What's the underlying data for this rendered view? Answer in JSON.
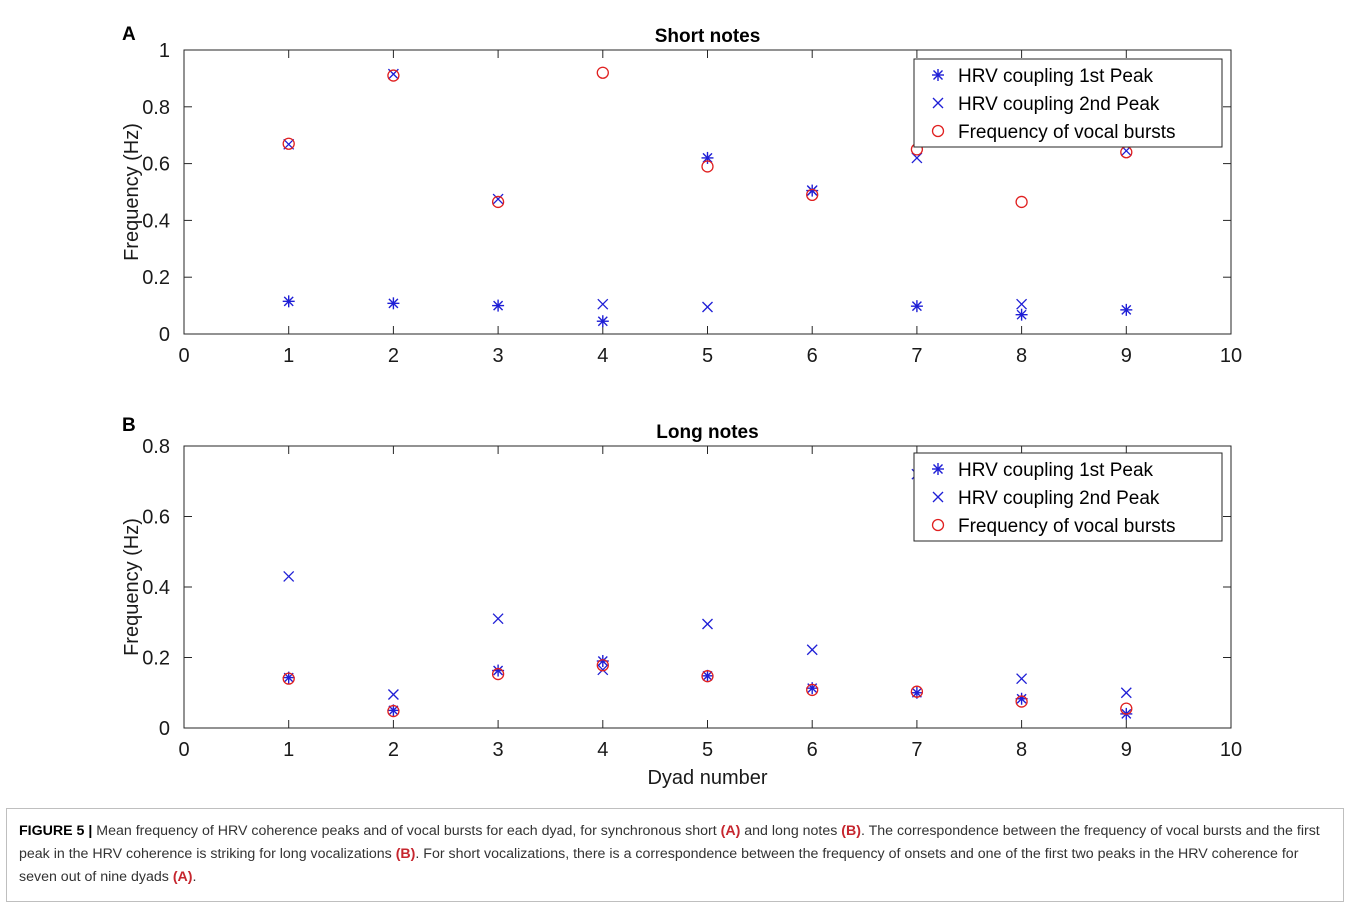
{
  "chart_data": [
    {
      "panel_label": "A",
      "type": "scatter",
      "title": "Short notes",
      "xlabel": "",
      "ylabel": "Frequency (Hz)",
      "xlim": [
        0,
        10
      ],
      "ylim": [
        0,
        1
      ],
      "xticks": [
        "0",
        "1",
        "2",
        "3",
        "4",
        "5",
        "6",
        "7",
        "8",
        "9",
        "10"
      ],
      "yticks": [
        "0",
        "0.2",
        "0.4",
        "0.6",
        "0.8",
        "1"
      ],
      "legend_position": "top-right",
      "series": [
        {
          "name": "HRV coupling 1st Peak",
          "marker": "asterisk",
          "color": "#1f1fd6",
          "points": [
            [
              1,
              0.115
            ],
            [
              2,
              0.108
            ],
            [
              3,
              0.1
            ],
            [
              4,
              0.045
            ],
            [
              5,
              0.62
            ],
            [
              6,
              0.505
            ],
            [
              7,
              0.098
            ],
            [
              8,
              0.068
            ],
            [
              9,
              0.085
            ]
          ]
        },
        {
          "name": "HRV coupling 2nd Peak",
          "marker": "x",
          "color": "#1f1fd6",
          "points": [
            [
              1,
              0.668
            ],
            [
              2,
              0.915
            ],
            [
              3,
              0.475
            ],
            [
              4,
              0.105
            ],
            [
              5,
              0.095
            ],
            [
              6,
              0.505
            ],
            [
              7,
              0.62
            ],
            [
              8,
              0.105
            ],
            [
              9,
              0.645
            ]
          ]
        },
        {
          "name": "Frequency of vocal bursts",
          "marker": "circle",
          "color": "#e02020",
          "points": [
            [
              1,
              0.67
            ],
            [
              2,
              0.91
            ],
            [
              3,
              0.465
            ],
            [
              4,
              0.92
            ],
            [
              5,
              0.59
            ],
            [
              6,
              0.49
            ],
            [
              7,
              0.65
            ],
            [
              8,
              0.465
            ],
            [
              9,
              0.64
            ]
          ]
        }
      ]
    },
    {
      "panel_label": "B",
      "type": "scatter",
      "title": "Long notes",
      "xlabel": "Dyad number",
      "ylabel": "Frequency (Hz)",
      "xlim": [
        0,
        10
      ],
      "ylim": [
        0,
        0.8
      ],
      "xticks": [
        "0",
        "1",
        "2",
        "3",
        "4",
        "5",
        "6",
        "7",
        "8",
        "9",
        "10"
      ],
      "yticks": [
        "0",
        "0.2",
        "0.4",
        "0.6",
        "0.8"
      ],
      "legend_position": "top-right",
      "series": [
        {
          "name": "HRV coupling 1st Peak",
          "marker": "asterisk",
          "color": "#1f1fd6",
          "points": [
            [
              1,
              0.143
            ],
            [
              2,
              0.05
            ],
            [
              3,
              0.163
            ],
            [
              4,
              0.19
            ],
            [
              5,
              0.148
            ],
            [
              6,
              0.113
            ],
            [
              7,
              0.1
            ],
            [
              8,
              0.083
            ],
            [
              9,
              0.04
            ]
          ]
        },
        {
          "name": "HRV coupling 2nd Peak",
          "marker": "x",
          "color": "#1f1fd6",
          "points": [
            [
              1,
              0.43
            ],
            [
              2,
              0.095
            ],
            [
              3,
              0.31
            ],
            [
              4,
              0.165
            ],
            [
              5,
              0.295
            ],
            [
              6,
              0.222
            ],
            [
              7,
              0.72
            ],
            [
              8,
              0.14
            ],
            [
              9,
              0.1
            ]
          ]
        },
        {
          "name": "Frequency of vocal bursts",
          "marker": "circle",
          "color": "#e02020",
          "points": [
            [
              1,
              0.14
            ],
            [
              2,
              0.048
            ],
            [
              3,
              0.153
            ],
            [
              4,
              0.178
            ],
            [
              5,
              0.147
            ],
            [
              6,
              0.108
            ],
            [
              7,
              0.103
            ],
            [
              8,
              0.075
            ],
            [
              9,
              0.055
            ]
          ]
        }
      ]
    }
  ],
  "caption": {
    "figure_label": "FIGURE 5 |",
    "text_1": " Mean frequency of HRV coherence peaks and of vocal bursts for each dyad, for synchronous short ",
    "ref_a1": "(A)",
    "text_2": " and long notes ",
    "ref_b1": "(B)",
    "text_3": ". The correspondence between the frequency of vocal bursts and the first peak in the HRV coherence is striking for long vocalizations ",
    "ref_b2": "(B)",
    "text_4": ". For short vocalizations, there is a correspondence between the frequency of onsets and one of the first two peaks in the HRV coherence for seven out of nine dyads ",
    "ref_a2": "(A)",
    "text_5": "."
  }
}
